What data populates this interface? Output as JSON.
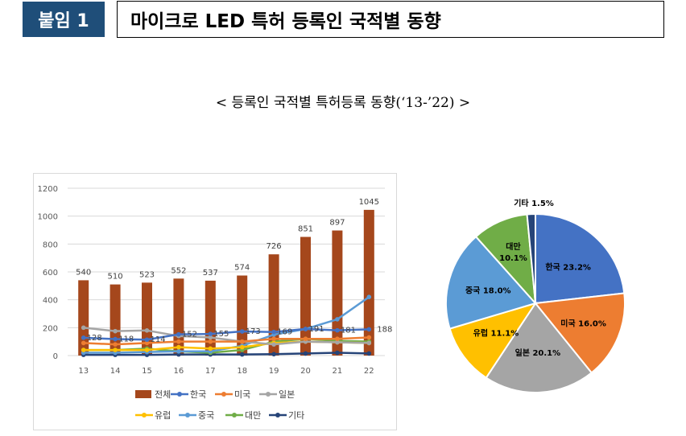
{
  "header": {
    "tag": "붙임 1",
    "title": "마이크로 LED 특허 등록인 국적별 동향"
  },
  "subtitle": "< 등록인 국적별 특허등록 동향(‘13-’22) >",
  "chart_data": [
    {
      "type": "bar+line",
      "categories": [
        "13",
        "14",
        "15",
        "16",
        "17",
        "18",
        "19",
        "20",
        "21",
        "22"
      ],
      "ylim": [
        0,
        1200
      ],
      "yticks": [
        "0",
        "200",
        "400",
        "600",
        "800",
        "1000",
        "1200"
      ],
      "grid": true,
      "legend_position": "bottom",
      "series": [
        {
          "name": "전체",
          "type": "bar",
          "color": "#a5471c",
          "values": [
            540,
            510,
            523,
            552,
            537,
            574,
            726,
            851,
            897,
            1045
          ],
          "labels": [
            "540",
            "510",
            "523",
            "552",
            "537",
            "574",
            "726",
            "851",
            "897",
            "1045"
          ]
        },
        {
          "name": "한국",
          "type": "line",
          "color": "#4472c4",
          "values": [
            128,
            118,
            114,
            152,
            155,
            173,
            169,
            191,
            181,
            188
          ],
          "labels": [
            "128",
            "118",
            "114",
            "152",
            "155",
            "173",
            "169",
            "191",
            "181",
            "188"
          ]
        },
        {
          "name": "미국",
          "type": "line",
          "color": "#ed7d31",
          "values": [
            90,
            80,
            90,
            100,
            100,
            100,
            120,
            120,
            120,
            130
          ]
        },
        {
          "name": "일본",
          "type": "line",
          "color": "#a5a5a5",
          "values": [
            200,
            175,
            180,
            140,
            130,
            100,
            80,
            100,
            95,
            90
          ]
        },
        {
          "name": "유럽",
          "type": "line",
          "color": "#ffc000",
          "values": [
            40,
            40,
            40,
            60,
            50,
            60,
            90,
            100,
            95,
            90
          ]
        },
        {
          "name": "중국",
          "type": "line",
          "color": "#5b9bd5",
          "values": [
            20,
            20,
            25,
            30,
            30,
            70,
            150,
            190,
            260,
            420
          ]
        },
        {
          "name": "대만",
          "type": "line",
          "color": "#70ad47",
          "values": [
            40,
            40,
            50,
            30,
            20,
            40,
            100,
            120,
            105,
            100
          ]
        },
        {
          "name": "기타",
          "type": "line",
          "color": "#264478",
          "values": [
            5,
            5,
            5,
            8,
            8,
            8,
            10,
            15,
            20,
            15
          ]
        }
      ]
    },
    {
      "type": "pie",
      "slices": [
        {
          "label": "한국",
          "value": 23.2,
          "text": "23.2%",
          "color": "#4472c4"
        },
        {
          "label": "미국",
          "value": 16.0,
          "text": "16.0%",
          "color": "#ed7d31"
        },
        {
          "label": "일본",
          "value": 20.1,
          "text": "20.1%",
          "color": "#a5a5a5"
        },
        {
          "label": "유럽",
          "value": 11.1,
          "text": "11.1%",
          "color": "#ffc000"
        },
        {
          "label": "중국",
          "value": 18.0,
          "text": "18.0%",
          "color": "#5b9bd5"
        },
        {
          "label": "대만",
          "value": 10.1,
          "text": "10.1%",
          "color": "#70ad47"
        },
        {
          "label": "기타",
          "value": 1.5,
          "text": "1.5%",
          "color": "#264478"
        }
      ]
    }
  ]
}
